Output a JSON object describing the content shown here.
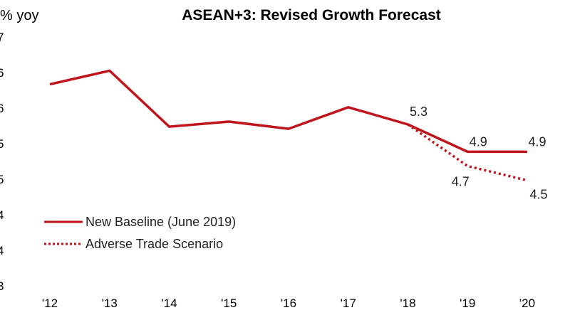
{
  "chart_data": {
    "type": "line",
    "title": "ASEAN+3:  Revised Growth Forecast",
    "ylabel": "% yoy",
    "categories": [
      "'12",
      "'13",
      "'14",
      "'15",
      "'16",
      "'17",
      "'18",
      "'19",
      "'20"
    ],
    "y_ticks": [
      "7",
      "6",
      "6",
      "5",
      "5",
      "4",
      "4",
      "3"
    ],
    "ylim": [
      3.0,
      6.5
    ],
    "grid": false,
    "legend_position": "bottom-left",
    "series": [
      {
        "name": "New Baseline (June 2019)",
        "style": "solid",
        "color": "#c0141c",
        "values": [
          5.84,
          6.03,
          5.25,
          5.32,
          5.22,
          5.52,
          5.28,
          4.9,
          4.9
        ]
      },
      {
        "name": "Adverse Trade Scenario",
        "style": "dotted",
        "color": "#c0141c",
        "values": [
          null,
          null,
          null,
          null,
          null,
          null,
          5.28,
          4.7,
          4.5
        ]
      }
    ],
    "data_labels": [
      {
        "text": "5.3",
        "series": 0,
        "index": 6
      },
      {
        "text": "4.9",
        "series": 0,
        "index": 7
      },
      {
        "text": "4.9",
        "series": 0,
        "index": 8
      },
      {
        "text": "4.7",
        "series": 1,
        "index": 7
      },
      {
        "text": "4.5",
        "series": 1,
        "index": 8
      }
    ]
  }
}
